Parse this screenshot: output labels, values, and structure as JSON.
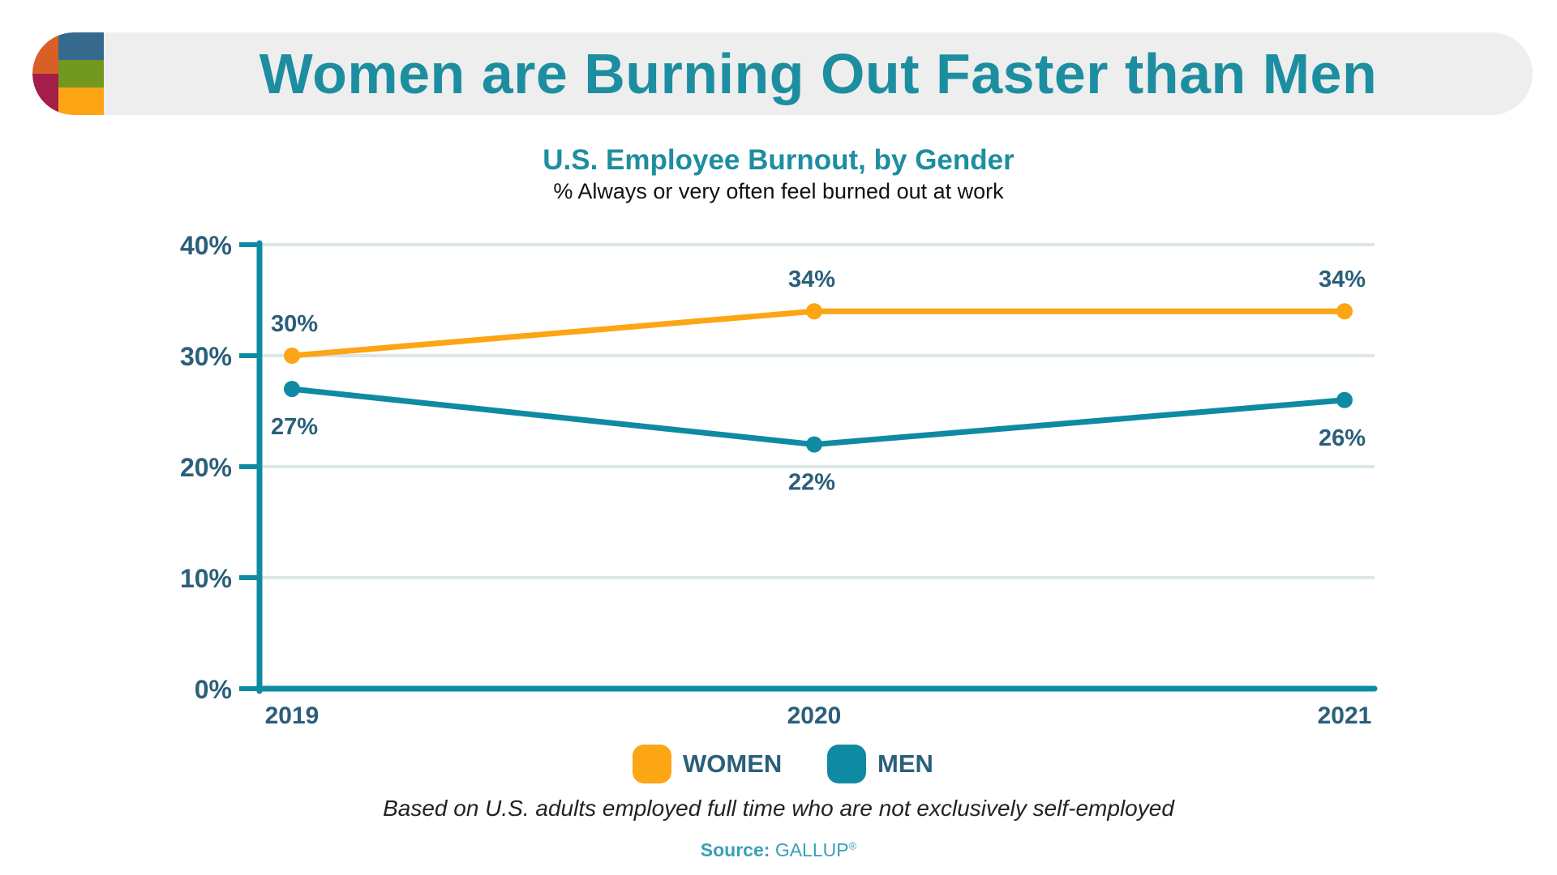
{
  "header": {
    "title": "Women are Burning Out Faster than Men",
    "logo_colors": [
      "#356a8e",
      "#d95f26",
      "#73981f",
      "#a31f4a",
      "#fca515"
    ]
  },
  "chart_data": {
    "type": "line",
    "title": "U.S. Employee Burnout, by Gender",
    "subtitle": "% Always or very often feel burned out at work",
    "categories": [
      "2019",
      "2020",
      "2021"
    ],
    "series": [
      {
        "name": "WOMEN",
        "values": [
          30,
          34,
          34
        ],
        "color": "#fca515",
        "labels": [
          "30%",
          "34%",
          "34%"
        ]
      },
      {
        "name": "MEN",
        "values": [
          27,
          22,
          26
        ],
        "color": "#0f8aa3",
        "labels": [
          "27%",
          "22%",
          "26%"
        ]
      }
    ],
    "ylim": [
      0,
      40
    ],
    "yticks": [
      0,
      10,
      20,
      30,
      40
    ],
    "ytick_labels": [
      "0%",
      "10%",
      "20%",
      "30%",
      "40%"
    ],
    "xlabel": "",
    "ylabel": "",
    "grid": true,
    "legend_position": "bottom-center"
  },
  "legend": {
    "women_label": "WOMEN",
    "men_label": "MEN"
  },
  "footnote": "Based on U.S. adults employed full time who are not exclusively self-employed",
  "source": {
    "label": "Source:",
    "name": "GALLUP",
    "mark": "®"
  },
  "colors": {
    "accent": "#1d8ea0",
    "women": "#fca515",
    "men": "#0f8aa3",
    "axis": "#0f8aa3",
    "grid": "#dce5e8",
    "label": "#2b5f7a"
  }
}
